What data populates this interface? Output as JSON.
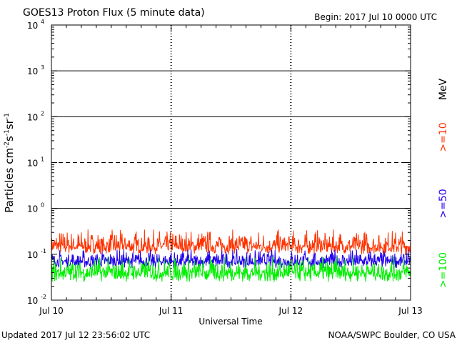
{
  "header": {
    "title": "GOES13 Proton Flux (5 minute data)",
    "begin": "Begin: 2017 Jul 10 0000 UTC"
  },
  "footer": {
    "updated": "Updated 2017 Jul 12 23:56:02 UTC",
    "credit": "NOAA/SWPC Boulder, CO USA"
  },
  "chart_data": {
    "type": "line",
    "title": "GOES13 Proton Flux (5 minute data)",
    "xlabel": "Universal Time",
    "ylabel": {
      "text": "Particles cm",
      "parts": [
        "Particles cm",
        "-2",
        "s",
        "-1",
        "sr",
        "-1"
      ]
    },
    "x_ticks": [
      "Jul 10",
      "Jul 11",
      "Jul 12",
      "Jul 13"
    ],
    "xlim_hours": [
      0,
      72
    ],
    "y_scale": "log",
    "ylim": [
      0.01,
      10000
    ],
    "y_tick_labels": [
      {
        "base": "10",
        "exp": "-2"
      },
      {
        "base": "10",
        "exp": "-1"
      },
      {
        "base": "10",
        "exp": "0"
      },
      {
        "base": "10",
        "exp": "1"
      },
      {
        "base": "10",
        "exp": "2"
      },
      {
        "base": "10",
        "exp": "3"
      },
      {
        "base": "10",
        "exp": "4"
      }
    ],
    "threshold_lines": [
      {
        "value": 1,
        "style": "solid"
      },
      {
        "value": 10,
        "style": "dashed"
      },
      {
        "value": 100,
        "style": "solid"
      },
      {
        "value": 1000,
        "style": "solid"
      }
    ],
    "legend_unit": "MeV",
    "legend_position": "right",
    "series": [
      {
        "name": ">=10",
        "color": "#ff3300",
        "typical_value": 0.15,
        "range": [
          0.1,
          0.35
        ]
      },
      {
        "name": ">=50",
        "color": "#2200ee",
        "typical_value": 0.07,
        "range": [
          0.05,
          0.13
        ]
      },
      {
        "name": ">=100",
        "color": "#00ee00",
        "typical_value": 0.04,
        "range": [
          0.025,
          0.09
        ]
      }
    ]
  }
}
